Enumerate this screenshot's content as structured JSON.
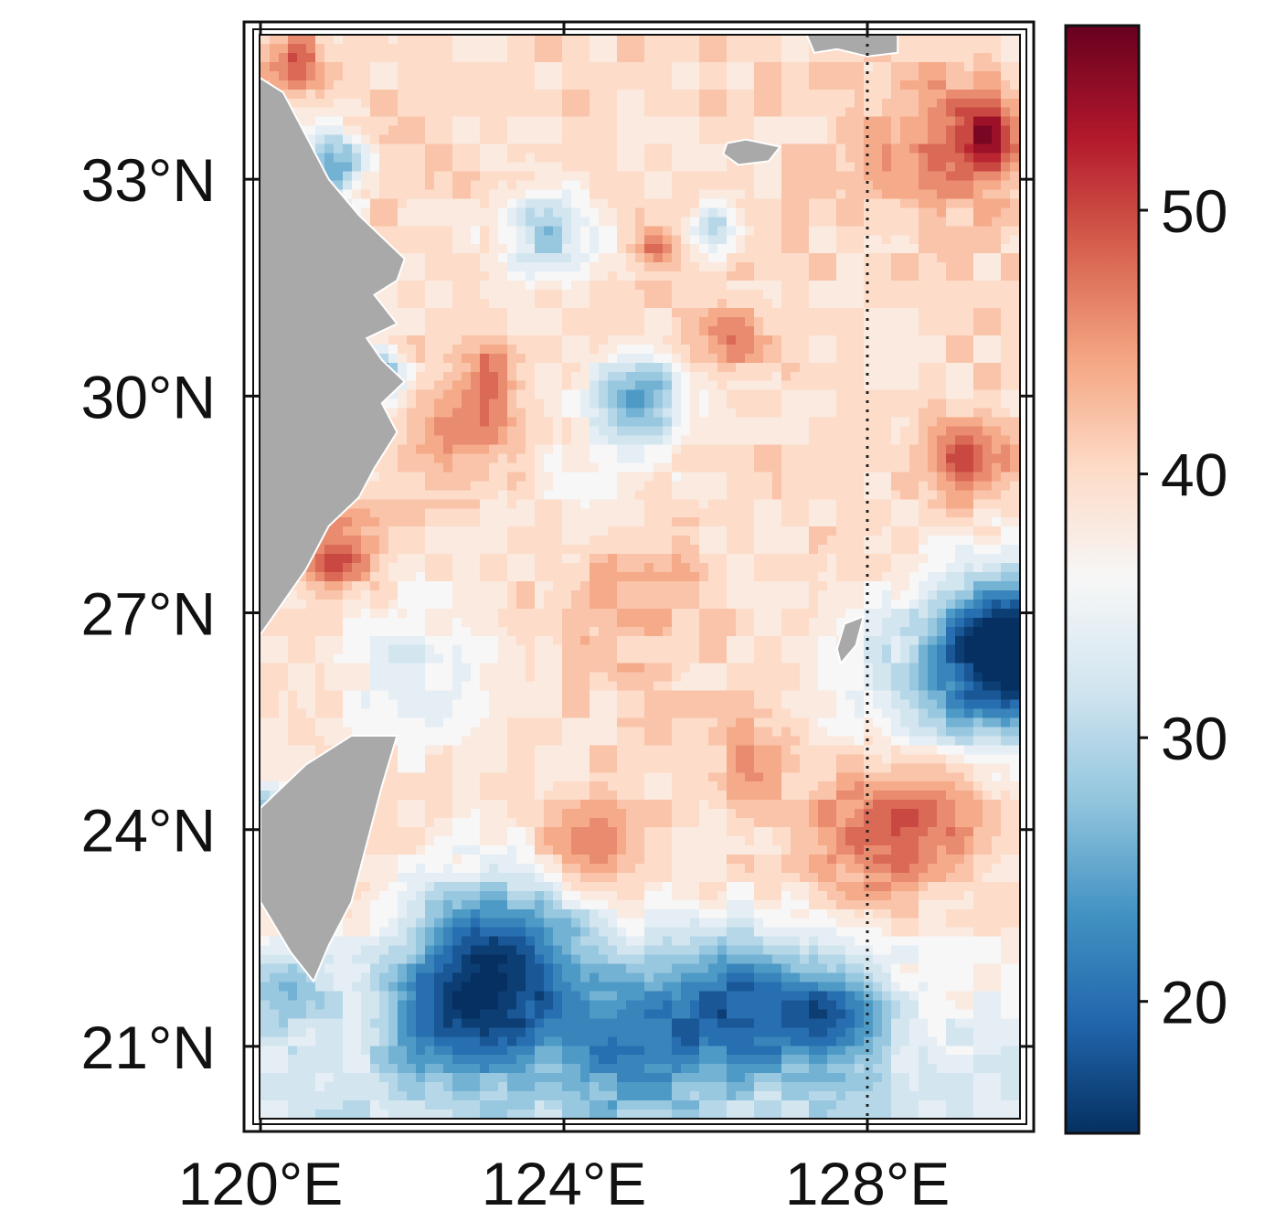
{
  "map": {
    "lon_range": [
      120,
      130
    ],
    "lat_range": [
      20,
      35
    ],
    "x_ticks": [
      {
        "value": 120,
        "label": "120°E"
      },
      {
        "value": 124,
        "label": "124°E"
      },
      {
        "value": 128,
        "label": "128°E"
      }
    ],
    "y_ticks": [
      {
        "value": 33,
        "label": "33°N"
      },
      {
        "value": 30,
        "label": "30°N"
      },
      {
        "value": 27,
        "label": "27°N"
      },
      {
        "value": 24,
        "label": "24°N"
      },
      {
        "value": 21,
        "label": "21°N"
      }
    ],
    "reference_meridian": 128,
    "land_color": "#a9a9a9",
    "frame": "double-line border"
  },
  "colorbar": {
    "range": [
      15,
      57
    ],
    "ticks": [
      {
        "value": 50,
        "label": "50"
      },
      {
        "value": 40,
        "label": "40"
      },
      {
        "value": 30,
        "label": "30"
      },
      {
        "value": 20,
        "label": "20"
      }
    ],
    "colormap": [
      "#053061",
      "#2166ac",
      "#4393c3",
      "#92c5de",
      "#d1e5f0",
      "#f7f7f7",
      "#fddbc7",
      "#f4a582",
      "#d6604d",
      "#b2182b",
      "#67001f"
    ]
  },
  "field_features": [
    {
      "lon": 121.0,
      "lat": 27.8,
      "value": 49,
      "r": 0.55
    },
    {
      "lon": 122.8,
      "lat": 29.6,
      "value": 48,
      "r": 0.7
    },
    {
      "lon": 123.0,
      "lat": 30.3,
      "value": 46,
      "r": 0.35
    },
    {
      "lon": 121.5,
      "lat": 30.3,
      "value": 21,
      "r": 0.35
    },
    {
      "lon": 121.0,
      "lat": 33.2,
      "value": 24,
      "r": 0.5
    },
    {
      "lon": 123.8,
      "lat": 32.3,
      "value": 28,
      "r": 0.6
    },
    {
      "lon": 125.0,
      "lat": 30.0,
      "value": 26,
      "r": 0.6
    },
    {
      "lon": 124.8,
      "lat": 27.3,
      "value": 45,
      "r": 1.0
    },
    {
      "lon": 121.5,
      "lat": 33.2,
      "value": 44,
      "r": 0.6
    },
    {
      "lon": 120.4,
      "lat": 34.6,
      "value": 48,
      "r": 0.5
    },
    {
      "lon": 129.0,
      "lat": 33.5,
      "value": 46,
      "r": 1.1
    },
    {
      "lon": 129.6,
      "lat": 33.6,
      "value": 49,
      "r": 0.5
    },
    {
      "lon": 129.3,
      "lat": 29.1,
      "value": 49,
      "r": 0.6
    },
    {
      "lon": 126.2,
      "lat": 30.8,
      "value": 46,
      "r": 0.5
    },
    {
      "lon": 125.2,
      "lat": 32.0,
      "value": 47,
      "r": 0.3
    },
    {
      "lon": 130.0,
      "lat": 26.6,
      "value": 16,
      "r": 0.9
    },
    {
      "lon": 129.3,
      "lat": 26.0,
      "value": 27,
      "r": 1.4
    },
    {
      "lon": 128.2,
      "lat": 24.0,
      "value": 50,
      "r": 0.9
    },
    {
      "lon": 129.2,
      "lat": 24.5,
      "value": 46,
      "r": 0.7
    },
    {
      "lon": 124.3,
      "lat": 23.8,
      "value": 47,
      "r": 0.7
    },
    {
      "lon": 126.5,
      "lat": 25.0,
      "value": 44,
      "r": 0.6
    },
    {
      "lon": 123.2,
      "lat": 22.3,
      "value": 22,
      "r": 1.2
    },
    {
      "lon": 122.6,
      "lat": 21.4,
      "value": 27,
      "r": 1.0
    },
    {
      "lon": 126.2,
      "lat": 21.6,
      "value": 24,
      "r": 1.0
    },
    {
      "lon": 127.5,
      "lat": 21.4,
      "value": 25,
      "r": 0.8
    },
    {
      "lon": 124.8,
      "lat": 21.0,
      "value": 29,
      "r": 1.0
    },
    {
      "lon": 120.3,
      "lat": 21.8,
      "value": 30,
      "r": 0.6
    },
    {
      "lon": 120.1,
      "lat": 24.3,
      "value": 27,
      "r": 0.4
    },
    {
      "lon": 126.0,
      "lat": 32.3,
      "value": 30,
      "r": 0.35
    },
    {
      "lon": 122.0,
      "lat": 26.2,
      "value": 34,
      "r": 1.0
    },
    {
      "lon": 124.5,
      "lat": 28.5,
      "value": 36,
      "r": 1.2
    }
  ],
  "land_polygons": [
    {
      "name": "china-mainland",
      "points": [
        [
          120.0,
          34.4
        ],
        [
          120.3,
          34.2
        ],
        [
          120.6,
          33.6
        ],
        [
          120.9,
          33.0
        ],
        [
          121.3,
          32.5
        ],
        [
          121.6,
          32.2
        ],
        [
          121.9,
          31.9
        ],
        [
          121.8,
          31.6
        ],
        [
          121.5,
          31.4
        ],
        [
          121.8,
          31.0
        ],
        [
          121.4,
          30.8
        ],
        [
          121.6,
          30.5
        ],
        [
          121.9,
          30.2
        ],
        [
          121.6,
          29.9
        ],
        [
          121.8,
          29.5
        ],
        [
          121.5,
          29.0
        ],
        [
          121.3,
          28.6
        ],
        [
          120.9,
          28.2
        ],
        [
          120.6,
          27.6
        ],
        [
          120.2,
          27.0
        ],
        [
          120.0,
          26.7
        ]
      ]
    },
    {
      "name": "taiwan",
      "points": [
        [
          121.8,
          25.3
        ],
        [
          121.6,
          24.6
        ],
        [
          121.4,
          23.8
        ],
        [
          121.2,
          23.0
        ],
        [
          120.9,
          22.4
        ],
        [
          120.7,
          21.9
        ],
        [
          120.4,
          22.3
        ],
        [
          120.0,
          23.0
        ],
        [
          120.0,
          24.3
        ],
        [
          120.6,
          24.9
        ],
        [
          121.2,
          25.3
        ]
      ]
    },
    {
      "name": "jeju",
      "points": [
        [
          126.15,
          33.5
        ],
        [
          126.4,
          33.55
        ],
        [
          126.85,
          33.45
        ],
        [
          126.7,
          33.25
        ],
        [
          126.3,
          33.2
        ],
        [
          126.1,
          33.35
        ]
      ]
    },
    {
      "name": "korea-south-tip",
      "points": [
        [
          127.2,
          35.0
        ],
        [
          128.4,
          35.0
        ],
        [
          128.4,
          34.75
        ],
        [
          128.0,
          34.7
        ],
        [
          127.6,
          34.8
        ],
        [
          127.3,
          34.75
        ]
      ]
    },
    {
      "name": "okinawa",
      "points": [
        [
          127.7,
          26.85
        ],
        [
          127.95,
          26.95
        ],
        [
          127.85,
          26.55
        ],
        [
          127.65,
          26.3
        ],
        [
          127.6,
          26.5
        ]
      ]
    }
  ]
}
